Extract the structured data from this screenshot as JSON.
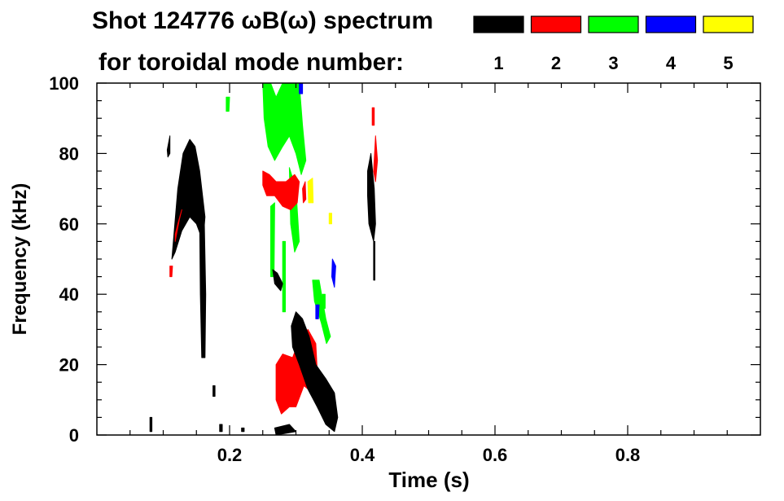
{
  "chart_data": {
    "type": "heatmap",
    "title_line1": "Shot 124776 ωB(ω) spectrum",
    "title_line2": "for toroidal mode number:",
    "xlabel": "Time (s)",
    "ylabel": "Frequency (kHz)",
    "xlim": [
      0.0,
      1.0
    ],
    "ylim": [
      0,
      100
    ],
    "x_ticks": [
      {
        "value": 0.2,
        "label": "0.2"
      },
      {
        "value": 0.4,
        "label": "0.4"
      },
      {
        "value": 0.6,
        "label": "0.6"
      },
      {
        "value": 0.8,
        "label": "0.8"
      }
    ],
    "y_ticks": [
      {
        "value": 0,
        "label": "0"
      },
      {
        "value": 20,
        "label": "20"
      },
      {
        "value": 40,
        "label": "40"
      },
      {
        "value": 60,
        "label": "60"
      },
      {
        "value": 80,
        "label": "80"
      },
      {
        "value": 100,
        "label": "100"
      }
    ],
    "legend": [
      {
        "mode": "1",
        "color": "#000000"
      },
      {
        "mode": "2",
        "color": "#ff0000"
      },
      {
        "mode": "3",
        "color": "#00ff00"
      },
      {
        "mode": "4",
        "color": "#0000ff"
      },
      {
        "mode": "5",
        "color": "#ffff00"
      }
    ],
    "regions": [
      {
        "mode": "1",
        "points": [
          [
            0.113,
            50
          ],
          [
            0.122,
            70
          ],
          [
            0.13,
            80
          ],
          [
            0.14,
            84
          ],
          [
            0.148,
            82
          ],
          [
            0.155,
            75
          ],
          [
            0.163,
            62
          ],
          [
            0.16,
            55
          ],
          [
            0.15,
            60
          ],
          [
            0.14,
            62
          ],
          [
            0.128,
            58
          ],
          [
            0.118,
            52
          ]
        ]
      },
      {
        "mode": "1",
        "points": [
          [
            0.155,
            60
          ],
          [
            0.162,
            60
          ],
          [
            0.164,
            40
          ],
          [
            0.163,
            22
          ],
          [
            0.158,
            22
          ],
          [
            0.156,
            40
          ]
        ]
      },
      {
        "mode": "2",
        "points": [
          [
            0.118,
            55
          ],
          [
            0.124,
            61
          ],
          [
            0.128,
            64
          ],
          [
            0.122,
            60
          ],
          [
            0.118,
            57
          ]
        ]
      },
      {
        "mode": "2",
        "points": [
          [
            0.11,
            48
          ],
          [
            0.114,
            48
          ],
          [
            0.113,
            45
          ],
          [
            0.11,
            45
          ]
        ]
      },
      {
        "mode": "1",
        "points": [
          [
            0.106,
            81
          ],
          [
            0.11,
            85
          ],
          [
            0.11,
            80
          ],
          [
            0.107,
            79
          ]
        ]
      },
      {
        "mode": "1",
        "points": [
          [
            0.408,
            75
          ],
          [
            0.413,
            80
          ],
          [
            0.418,
            70
          ],
          [
            0.42,
            60
          ],
          [
            0.417,
            55
          ],
          [
            0.41,
            60
          ],
          [
            0.408,
            68
          ]
        ]
      },
      {
        "mode": "1",
        "points": [
          [
            0.417,
            55
          ],
          [
            0.419,
            55
          ],
          [
            0.419,
            44
          ],
          [
            0.417,
            44
          ]
        ]
      },
      {
        "mode": "2",
        "points": [
          [
            0.417,
            75
          ],
          [
            0.42,
            85
          ],
          [
            0.423,
            78
          ],
          [
            0.42,
            72
          ]
        ]
      },
      {
        "mode": "2",
        "points": [
          [
            0.415,
            93
          ],
          [
            0.418,
            93
          ],
          [
            0.418,
            88
          ],
          [
            0.415,
            88
          ]
        ]
      },
      {
        "mode": "3",
        "points": [
          [
            0.25,
            100
          ],
          [
            0.262,
            100
          ],
          [
            0.27,
            96
          ],
          [
            0.28,
            100
          ],
          [
            0.305,
            100
          ],
          [
            0.31,
            88
          ],
          [
            0.315,
            78
          ],
          [
            0.308,
            74
          ],
          [
            0.3,
            80
          ],
          [
            0.29,
            85
          ],
          [
            0.28,
            82
          ],
          [
            0.268,
            78
          ],
          [
            0.258,
            82
          ],
          [
            0.252,
            90
          ]
        ]
      },
      {
        "mode": "3",
        "points": [
          [
            0.29,
            76
          ],
          [
            0.3,
            70
          ],
          [
            0.305,
            55
          ],
          [
            0.298,
            52
          ],
          [
            0.292,
            60
          ]
        ]
      },
      {
        "mode": "3",
        "points": [
          [
            0.262,
            65
          ],
          [
            0.268,
            66
          ],
          [
            0.267,
            45
          ],
          [
            0.262,
            45
          ]
        ]
      },
      {
        "mode": "3",
        "points": [
          [
            0.28,
            55
          ],
          [
            0.284,
            55
          ],
          [
            0.284,
            35
          ],
          [
            0.28,
            35
          ]
        ]
      },
      {
        "mode": "3",
        "points": [
          [
            0.325,
            44
          ],
          [
            0.335,
            44
          ],
          [
            0.345,
            33
          ],
          [
            0.352,
            28
          ],
          [
            0.346,
            26
          ],
          [
            0.338,
            32
          ],
          [
            0.328,
            38
          ]
        ]
      },
      {
        "mode": "3",
        "points": [
          [
            0.195,
            96
          ],
          [
            0.2,
            96
          ],
          [
            0.199,
            92
          ],
          [
            0.195,
            92
          ]
        ]
      },
      {
        "mode": "3",
        "points": [
          [
            0.34,
            40
          ],
          [
            0.344,
            40
          ],
          [
            0.344,
            36
          ],
          [
            0.34,
            36
          ]
        ]
      },
      {
        "mode": "2",
        "points": [
          [
            0.25,
            75
          ],
          [
            0.26,
            74
          ],
          [
            0.27,
            72
          ],
          [
            0.285,
            72
          ],
          [
            0.298,
            74
          ],
          [
            0.305,
            72
          ],
          [
            0.302,
            66
          ],
          [
            0.292,
            64
          ],
          [
            0.28,
            65
          ],
          [
            0.268,
            68
          ],
          [
            0.256,
            68
          ],
          [
            0.25,
            71
          ]
        ]
      },
      {
        "mode": "2",
        "points": [
          [
            0.27,
            20
          ],
          [
            0.28,
            23
          ],
          [
            0.295,
            22
          ],
          [
            0.305,
            27
          ],
          [
            0.318,
            30
          ],
          [
            0.33,
            26
          ],
          [
            0.333,
            15
          ],
          [
            0.325,
            12
          ],
          [
            0.312,
            14
          ],
          [
            0.3,
            8
          ],
          [
            0.29,
            8
          ],
          [
            0.278,
            6
          ],
          [
            0.27,
            10
          ]
        ]
      },
      {
        "mode": "2",
        "points": [
          [
            0.31,
            70
          ],
          [
            0.314,
            72
          ],
          [
            0.315,
            67
          ],
          [
            0.311,
            66
          ]
        ]
      },
      {
        "mode": "1",
        "points": [
          [
            0.3,
            35
          ],
          [
            0.31,
            33
          ],
          [
            0.32,
            28
          ],
          [
            0.33,
            20
          ],
          [
            0.345,
            16
          ],
          [
            0.358,
            12
          ],
          [
            0.363,
            5
          ],
          [
            0.358,
            1
          ],
          [
            0.345,
            3
          ],
          [
            0.332,
            8
          ],
          [
            0.318,
            13
          ],
          [
            0.305,
            20
          ],
          [
            0.295,
            25
          ],
          [
            0.293,
            31
          ]
        ]
      },
      {
        "mode": "1",
        "points": [
          [
            0.265,
            47
          ],
          [
            0.272,
            46
          ],
          [
            0.28,
            43
          ],
          [
            0.277,
            41
          ],
          [
            0.268,
            43
          ]
        ]
      },
      {
        "mode": "1",
        "points": [
          [
            0.268,
            2
          ],
          [
            0.29,
            3
          ],
          [
            0.3,
            1
          ],
          [
            0.27,
            0
          ]
        ]
      },
      {
        "mode": "1",
        "points": [
          [
            0.08,
            5
          ],
          [
            0.083,
            5
          ],
          [
            0.083,
            1
          ],
          [
            0.08,
            1
          ]
        ]
      },
      {
        "mode": "1",
        "points": [
          [
            0.185,
            3
          ],
          [
            0.189,
            3
          ],
          [
            0.189,
            1
          ],
          [
            0.185,
            1
          ]
        ]
      },
      {
        "mode": "1",
        "points": [
          [
            0.218,
            2
          ],
          [
            0.222,
            2
          ],
          [
            0.222,
            1
          ],
          [
            0.218,
            1
          ]
        ]
      },
      {
        "mode": "1",
        "points": [
          [
            0.175,
            14
          ],
          [
            0.178,
            14
          ],
          [
            0.178,
            11
          ],
          [
            0.175,
            11
          ]
        ]
      },
      {
        "mode": "4",
        "points": [
          [
            0.33,
            37
          ],
          [
            0.335,
            37
          ],
          [
            0.334,
            33
          ],
          [
            0.33,
            33
          ]
        ]
      },
      {
        "mode": "4",
        "points": [
          [
            0.355,
            50
          ],
          [
            0.36,
            48
          ],
          [
            0.358,
            42
          ],
          [
            0.354,
            45
          ]
        ]
      },
      {
        "mode": "4",
        "points": [
          [
            0.305,
            100
          ],
          [
            0.31,
            100
          ],
          [
            0.31,
            97
          ],
          [
            0.305,
            97
          ]
        ]
      },
      {
        "mode": "5",
        "points": [
          [
            0.318,
            72
          ],
          [
            0.325,
            73
          ],
          [
            0.326,
            66
          ],
          [
            0.319,
            66
          ]
        ]
      },
      {
        "mode": "5",
        "points": [
          [
            0.35,
            63
          ],
          [
            0.354,
            63
          ],
          [
            0.354,
            60
          ],
          [
            0.35,
            60
          ]
        ]
      }
    ]
  }
}
